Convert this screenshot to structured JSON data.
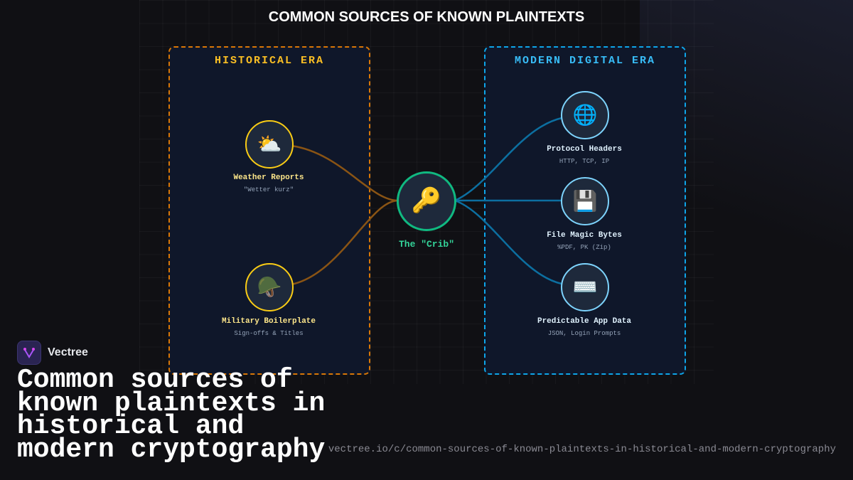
{
  "title": "COMMON SOURCES OF KNOWN PLAINTEXTS",
  "historical": {
    "label": "HISTORICAL ERA",
    "color": "#d97706",
    "items": [
      {
        "icon": "sun-behind-cloud-icon",
        "glyph": "⛅",
        "label": "Weather Reports",
        "sub": "\"Wetter kurz\""
      },
      {
        "icon": "military-helmet-icon",
        "glyph": "🪖",
        "label": "Military Boilerplate",
        "sub": "Sign-offs & Titles"
      }
    ]
  },
  "center": {
    "icon": "key-icon",
    "glyph": "🔑",
    "label": "The \"Crib\"",
    "color": "#10b981"
  },
  "modern": {
    "label": "MODERN DIGITAL ERA",
    "color": "#0ea5e9",
    "items": [
      {
        "icon": "globe-icon",
        "glyph": "🌐",
        "label": "Protocol Headers",
        "sub": "HTTP, TCP, IP"
      },
      {
        "icon": "floppy-disk-icon",
        "glyph": "💾",
        "label": "File Magic Bytes",
        "sub": "%PDF, PK (Zip)"
      },
      {
        "icon": "keyboard-icon",
        "glyph": "⌨️",
        "label": "Predictable App Data",
        "sub": "JSON, Login Prompts"
      }
    ]
  },
  "brand": {
    "name": "Vectree"
  },
  "headline": "Common sources of known plaintexts in historical and modern cryptography",
  "url": "vectree.io/c/common-sources-of-known-plaintexts-in-historical-and-modern-cryptography"
}
